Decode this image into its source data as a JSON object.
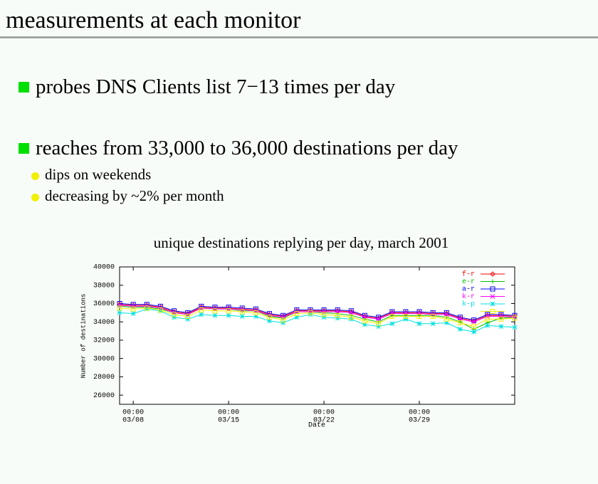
{
  "header": {
    "title": "measurements at each monitor"
  },
  "bullets": [
    {
      "text": "probes DNS Clients list 7−13 times per day",
      "sub": []
    },
    {
      "text": "reaches from 33,000 to 36,000 destinations per day",
      "sub": [
        "dips on weekends",
        "decreasing by ~2% per month"
      ]
    }
  ],
  "chart_data": {
    "type": "line",
    "title": "unique destinations replying per day, march 2001",
    "xlabel": "Date",
    "ylabel": "Number of destinations",
    "x": [
      "03/07",
      "03/08",
      "03/09",
      "03/10",
      "03/11",
      "03/12",
      "03/13",
      "03/14",
      "03/15",
      "03/16",
      "03/17",
      "03/18",
      "03/19",
      "03/20",
      "03/21",
      "03/22",
      "03/23",
      "03/24",
      "03/25",
      "03/26",
      "03/27",
      "03/28",
      "03/29",
      "03/30",
      "03/31",
      "04/01",
      "04/02",
      "04/03",
      "04/04",
      "04/05"
    ],
    "xlim": [
      "03/07",
      "04/05"
    ],
    "xticks": [
      {
        "value": "03/08",
        "label": [
          "00:00",
          "03/08"
        ]
      },
      {
        "value": "03/15",
        "label": [
          "00:00",
          "03/15"
        ]
      },
      {
        "value": "03/22",
        "label": [
          "00:00",
          "03/22"
        ]
      },
      {
        "value": "03/29",
        "label": [
          "00:00",
          "03/29"
        ]
      }
    ],
    "ylim": [
      25000,
      40000
    ],
    "yticks": [
      26000,
      28000,
      30000,
      32000,
      34000,
      36000,
      38000,
      40000
    ],
    "legend": "upper right",
    "series": [
      {
        "name": "f-r",
        "color": "#ff0000",
        "values": [
          35900,
          35800,
          35800,
          35600,
          35100,
          34900,
          35600,
          35500,
          35500,
          35400,
          35300,
          34800,
          34600,
          35200,
          35200,
          35200,
          35200,
          35100,
          34600,
          34400,
          35000,
          35000,
          35000,
          34900,
          34900,
          34400,
          34100,
          34700,
          34700,
          34600
        ]
      },
      {
        "name": "e-r",
        "color": "#00c000",
        "values": [
          35700,
          35600,
          35600,
          35400,
          35000,
          34800,
          35500,
          35400,
          35400,
          35200,
          35200,
          34600,
          34400,
          35100,
          35100,
          35000,
          34900,
          34700,
          34300,
          34000,
          34700,
          34700,
          34700,
          34700,
          34500,
          34000,
          33200,
          33900,
          34400,
          34500
        ]
      },
      {
        "name": "a-r",
        "color": "#0000ff",
        "values": [
          36000,
          35900,
          35900,
          35700,
          35200,
          35000,
          35700,
          35600,
          35600,
          35500,
          35400,
          34900,
          34700,
          35300,
          35300,
          35300,
          35300,
          35200,
          34700,
          34500,
          35100,
          35100,
          35100,
          35000,
          35000,
          34500,
          34200,
          34800,
          34800,
          34700
        ]
      },
      {
        "name": "k-r",
        "color": "#ff00ff",
        "values": [
          35800,
          35700,
          35700,
          35500,
          35000,
          34800,
          35500,
          35400,
          35400,
          35300,
          35200,
          34700,
          34500,
          35100,
          35100,
          35100,
          35100,
          35000,
          34500,
          34300,
          34900,
          34900,
          34900,
          34800,
          34800,
          34300,
          34000,
          34600,
          34600,
          34500
        ]
      },
      {
        "name": "k-p",
        "color": "#00e0e0",
        "values": [
          35000,
          34900,
          35400,
          35200,
          34500,
          34300,
          34800,
          34700,
          34700,
          34600,
          34600,
          34100,
          33900,
          34500,
          34800,
          34500,
          34400,
          34300,
          33700,
          33500,
          33800,
          34300,
          33800,
          33800,
          33900,
          33200,
          32900,
          33600,
          33500,
          33400
        ]
      },
      {
        "color": "#f0f000",
        "values": [
          35500,
          35400,
          35500,
          35300,
          34800,
          34600,
          35300,
          35200,
          35200,
          35100,
          35000,
          34500,
          34200,
          34900,
          35000,
          34800,
          34700,
          34500,
          34100,
          33800,
          34600,
          34600,
          34600,
          34600,
          34300,
          33900,
          33500,
          34300,
          34300,
          34400
        ]
      }
    ]
  }
}
